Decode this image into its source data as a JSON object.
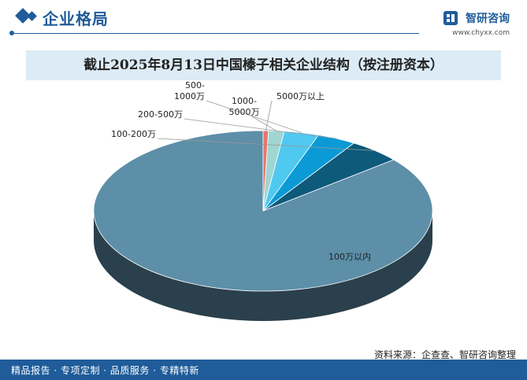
{
  "header": {
    "title": "企业格局"
  },
  "logo": {
    "name": "智研咨询",
    "url": "www.chyxx.com"
  },
  "colors": {
    "accent": "#1f5c99",
    "title_bar": "#dcebf5"
  },
  "chart_data": {
    "type": "pie",
    "title": "截止2025年8月13日中国榛子相关企业结构（按注册资本）",
    "slices": [
      {
        "label": "100万以内",
        "value": 86.0,
        "color": "#5d8fa8"
      },
      {
        "label": "100-200万",
        "value": 5.0,
        "color": "#0d5a7a"
      },
      {
        "label": "200-500万",
        "value": 3.7,
        "color": "#0b9ad6"
      },
      {
        "label": "500-1000万",
        "value": 3.3,
        "color": "#4fc9f0"
      },
      {
        "label": "1000-5000万",
        "value": 1.5,
        "color": "#9fd6d2"
      },
      {
        "label": "5000万以上",
        "value": 0.5,
        "color": "#e8756b"
      }
    ],
    "legend": "none"
  },
  "source": "资料来源：企查查、智研咨询整理",
  "footer": "精品报告 · 专项定制 · 品质服务 · 专精特新"
}
